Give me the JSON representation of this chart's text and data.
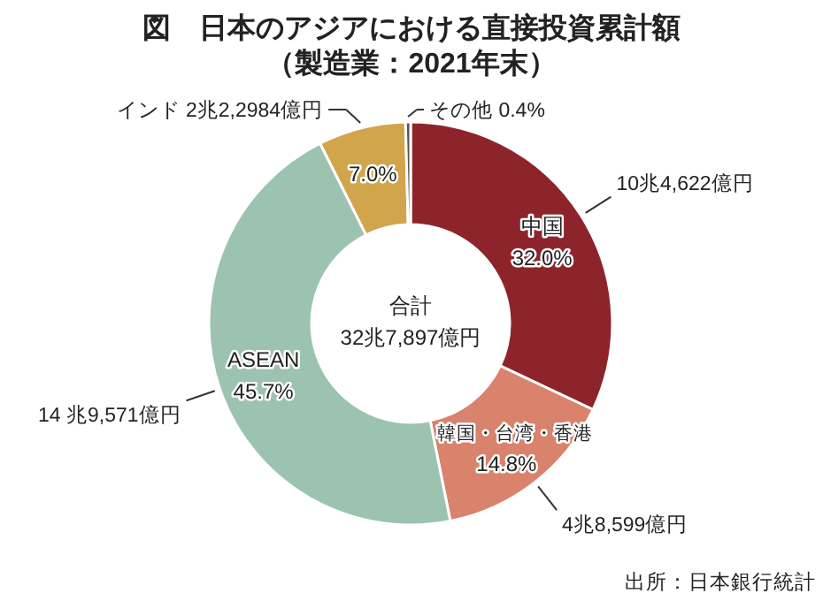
{
  "chart_data": {
    "type": "donut",
    "title": "図　日本のアジアにおける直接投資累計額",
    "subtitle": "（製造業：2021年末）",
    "categories": [
      "中国",
      "韓国・台湾・香港",
      "ASEAN",
      "インド",
      "その他"
    ],
    "values": [
      32.0,
      14.8,
      45.7,
      7.0,
      0.4
    ],
    "value_labels": [
      "32.0%",
      "14.8%",
      "45.7%",
      "7.0%",
      "0.4%"
    ],
    "colors": [
      "#8e242b",
      "#d9826c",
      "#9cc3b0",
      "#d0a54c",
      "#555555"
    ],
    "annotations": [
      {
        "text": "10兆4,622億円",
        "x": "中国"
      },
      {
        "text": "4兆8,599億円",
        "x": "韓国・台湾・香港"
      },
      {
        "text": "14 兆9,571億円",
        "x": "ASEAN"
      },
      {
        "text": "2兆2,2984億円",
        "x": "インド"
      },
      "合計",
      "32兆7,897億円",
      "出所：日本銀行統計"
    ]
  }
}
